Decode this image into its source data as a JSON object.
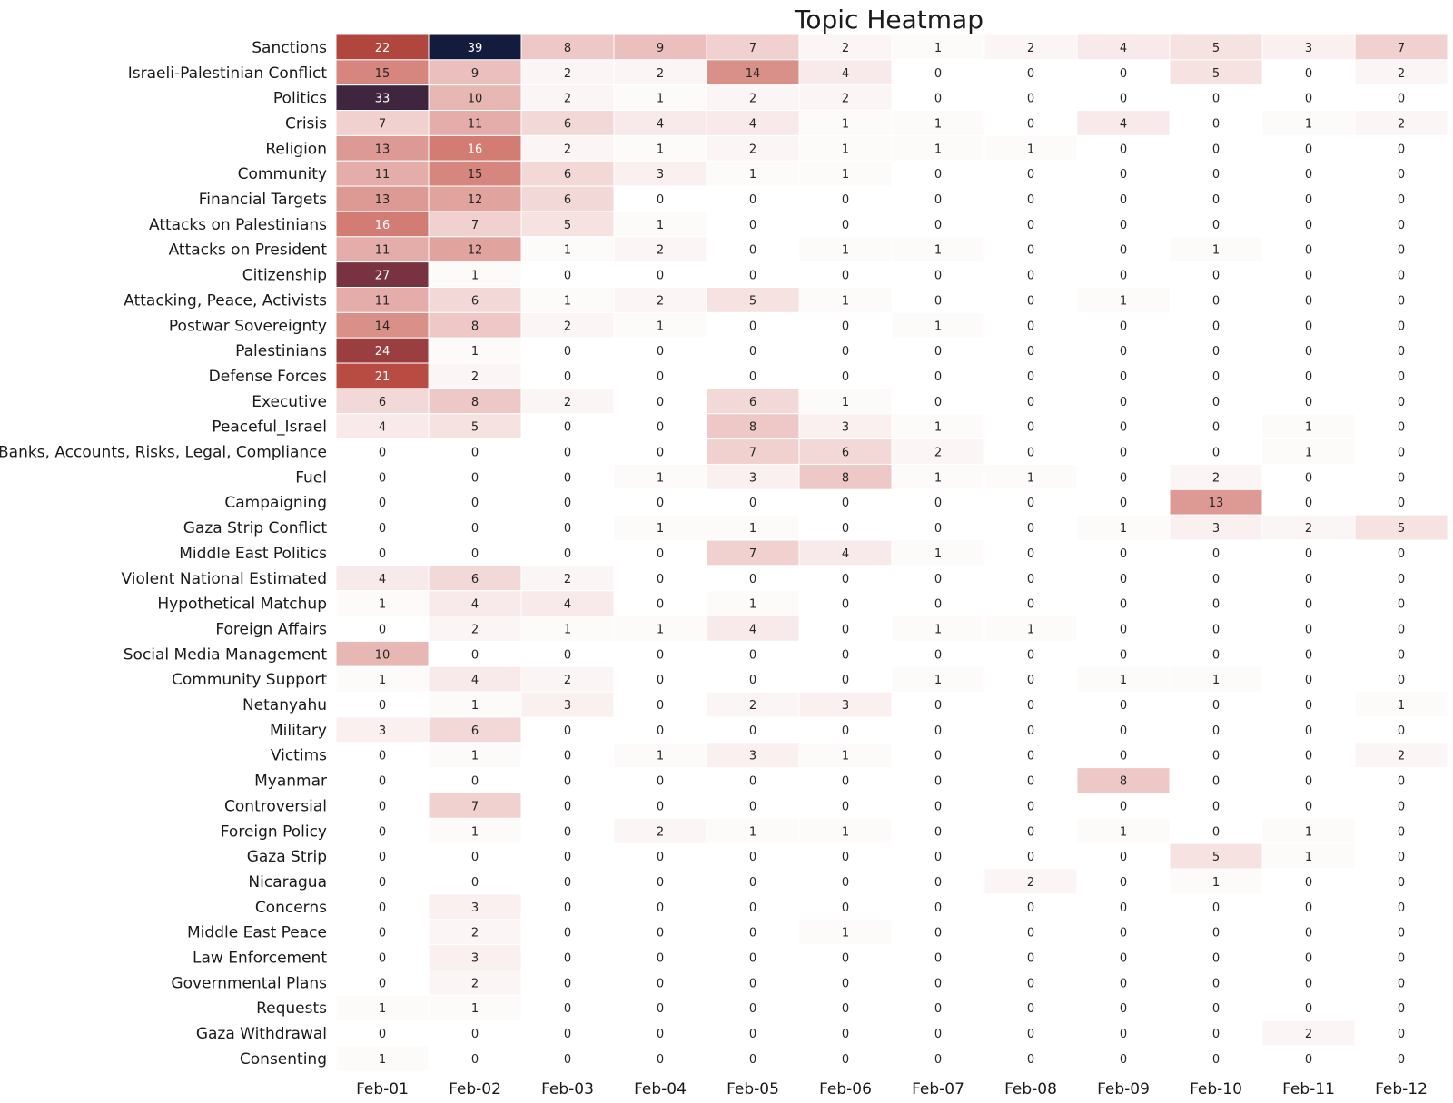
{
  "chart_data": {
    "type": "heatmap",
    "title": "Topic Heatmap",
    "xlabel": "",
    "ylabel": "",
    "x_categories": [
      "Feb-01",
      "Feb-02",
      "Feb-03",
      "Feb-04",
      "Feb-05",
      "Feb-06",
      "Feb-07",
      "Feb-08",
      "Feb-09",
      "Feb-10",
      "Feb-11",
      "Feb-12"
    ],
    "y_categories": [
      "Sanctions",
      "Israeli-Palestinian Conflict",
      "Politics",
      "Crisis",
      "Religion",
      "Community",
      "Financial Targets",
      "Attacks on Palestinians",
      "Attacks on President",
      "Citizenship",
      "Attacking, Peace, Activists",
      "Postwar Sovereignty",
      "Palestinians",
      "Defense Forces",
      "Executive",
      "Peaceful_Israel",
      "Banks, Accounts, Risks, Legal, Compliance",
      "Fuel",
      "Campaigning",
      "Gaza Strip Conflict",
      "Middle East Politics",
      "Violent National Estimated",
      "Hypothetical Matchup",
      "Foreign Affairs",
      "Social Media Management",
      "Community Support",
      "Netanyahu",
      "Military",
      "Victims",
      "Myanmar",
      "Controversial",
      "Foreign Policy",
      "Gaza Strip",
      "Nicaragua",
      "Concerns",
      "Middle East Peace",
      "Law Enforcement",
      "Governmental Plans",
      "Requests",
      "Gaza Withdrawal",
      "Consenting"
    ],
    "values": [
      [
        22,
        39,
        8,
        9,
        7,
        2,
        1,
        2,
        4,
        5,
        3,
        7
      ],
      [
        15,
        9,
        2,
        2,
        14,
        4,
        0,
        0,
        0,
        5,
        0,
        2
      ],
      [
        33,
        10,
        2,
        1,
        2,
        2,
        0,
        0,
        0,
        0,
        0,
        0
      ],
      [
        7,
        11,
        6,
        4,
        4,
        1,
        1,
        0,
        4,
        0,
        1,
        2
      ],
      [
        13,
        16,
        2,
        1,
        2,
        1,
        1,
        1,
        0,
        0,
        0,
        0
      ],
      [
        11,
        15,
        6,
        3,
        1,
        1,
        0,
        0,
        0,
        0,
        0,
        0
      ],
      [
        13,
        12,
        6,
        0,
        0,
        0,
        0,
        0,
        0,
        0,
        0,
        0
      ],
      [
        16,
        7,
        5,
        1,
        0,
        0,
        0,
        0,
        0,
        0,
        0,
        0
      ],
      [
        11,
        12,
        1,
        2,
        0,
        1,
        1,
        0,
        0,
        1,
        0,
        0
      ],
      [
        27,
        1,
        0,
        0,
        0,
        0,
        0,
        0,
        0,
        0,
        0,
        0
      ],
      [
        11,
        6,
        1,
        2,
        5,
        1,
        0,
        0,
        1,
        0,
        0,
        0
      ],
      [
        14,
        8,
        2,
        1,
        0,
        0,
        1,
        0,
        0,
        0,
        0,
        0
      ],
      [
        24,
        1,
        0,
        0,
        0,
        0,
        0,
        0,
        0,
        0,
        0,
        0
      ],
      [
        21,
        2,
        0,
        0,
        0,
        0,
        0,
        0,
        0,
        0,
        0,
        0
      ],
      [
        6,
        8,
        2,
        0,
        6,
        1,
        0,
        0,
        0,
        0,
        0,
        0
      ],
      [
        4,
        5,
        0,
        0,
        8,
        3,
        1,
        0,
        0,
        0,
        1,
        0
      ],
      [
        0,
        0,
        0,
        0,
        7,
        6,
        2,
        0,
        0,
        0,
        1,
        0
      ],
      [
        0,
        0,
        0,
        1,
        3,
        8,
        1,
        1,
        0,
        2,
        0,
        0
      ],
      [
        0,
        0,
        0,
        0,
        0,
        0,
        0,
        0,
        0,
        13,
        0,
        0
      ],
      [
        0,
        0,
        0,
        1,
        1,
        0,
        0,
        0,
        1,
        3,
        2,
        5
      ],
      [
        0,
        0,
        0,
        0,
        7,
        4,
        1,
        0,
        0,
        0,
        0,
        0
      ],
      [
        4,
        6,
        2,
        0,
        0,
        0,
        0,
        0,
        0,
        0,
        0,
        0
      ],
      [
        1,
        4,
        4,
        0,
        1,
        0,
        0,
        0,
        0,
        0,
        0,
        0
      ],
      [
        0,
        2,
        1,
        1,
        4,
        0,
        1,
        1,
        0,
        0,
        0,
        0
      ],
      [
        10,
        0,
        0,
        0,
        0,
        0,
        0,
        0,
        0,
        0,
        0,
        0
      ],
      [
        1,
        4,
        2,
        0,
        0,
        0,
        1,
        0,
        1,
        1,
        0,
        0
      ],
      [
        0,
        1,
        3,
        0,
        2,
        3,
        0,
        0,
        0,
        0,
        0,
        1
      ],
      [
        3,
        6,
        0,
        0,
        0,
        0,
        0,
        0,
        0,
        0,
        0,
        0
      ],
      [
        0,
        1,
        0,
        1,
        3,
        1,
        0,
        0,
        0,
        0,
        0,
        2
      ],
      [
        0,
        0,
        0,
        0,
        0,
        0,
        0,
        0,
        8,
        0,
        0,
        0
      ],
      [
        0,
        7,
        0,
        0,
        0,
        0,
        0,
        0,
        0,
        0,
        0,
        0
      ],
      [
        0,
        1,
        0,
        2,
        1,
        1,
        0,
        0,
        1,
        0,
        1,
        0
      ],
      [
        0,
        0,
        0,
        0,
        0,
        0,
        0,
        0,
        0,
        5,
        1,
        0
      ],
      [
        0,
        0,
        0,
        0,
        0,
        0,
        0,
        2,
        0,
        1,
        0,
        0
      ],
      [
        0,
        3,
        0,
        0,
        0,
        0,
        0,
        0,
        0,
        0,
        0,
        0
      ],
      [
        0,
        2,
        0,
        0,
        0,
        1,
        0,
        0,
        0,
        0,
        0,
        0
      ],
      [
        0,
        3,
        0,
        0,
        0,
        0,
        0,
        0,
        0,
        0,
        0,
        0
      ],
      [
        0,
        2,
        0,
        0,
        0,
        0,
        0,
        0,
        0,
        0,
        0,
        0
      ],
      [
        1,
        1,
        0,
        0,
        0,
        0,
        0,
        0,
        0,
        0,
        0,
        0
      ],
      [
        0,
        0,
        0,
        0,
        0,
        0,
        0,
        0,
        0,
        0,
        2,
        0
      ],
      [
        1,
        0,
        0,
        0,
        0,
        0,
        0,
        0,
        0,
        0,
        0,
        0
      ]
    ],
    "colorbar": false,
    "colormap": "white to red to dark navy (higher = darker)",
    "grid": false
  }
}
